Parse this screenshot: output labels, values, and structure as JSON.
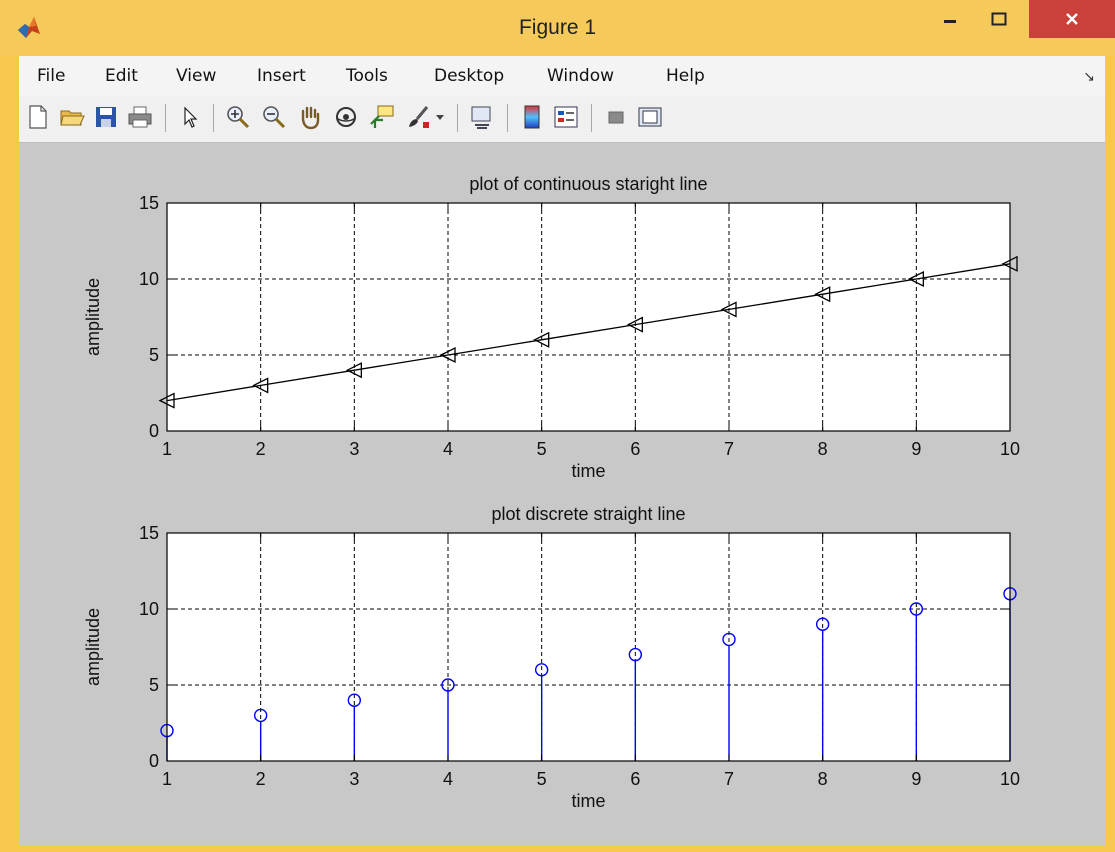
{
  "window": {
    "title": "Figure 1",
    "minimize_icon": "minimize-icon",
    "maximize_icon": "maximize-icon",
    "close_icon": "close-icon"
  },
  "menu": {
    "items": [
      "File",
      "Edit",
      "View",
      "Insert",
      "Tools",
      "Desktop",
      "Window",
      "Help"
    ]
  },
  "toolbar": {
    "tools": [
      "new-figure-icon",
      "open-file-icon",
      "save-icon",
      "print-icon",
      "edit-plot-arrow-icon",
      "zoom-in-icon",
      "zoom-out-icon",
      "pan-hand-icon",
      "rotate-3d-icon",
      "data-cursor-icon",
      "brush-icon",
      "brush-dropdown-icon",
      "link-plot-icon",
      "colorbar-icon",
      "legend-icon",
      "hide-plot-tools-icon",
      "show-plot-tools-icon"
    ]
  },
  "colors": {
    "window_frame": "#f7c84d",
    "close_button": "#c9413a",
    "figure_background": "#c8c8c8",
    "line_series": "#000000",
    "stem_series": "#0000ff"
  },
  "chart_data": [
    {
      "type": "line",
      "title": "plot of continuous staright line",
      "xlabel": "time",
      "ylabel": "amplitude",
      "x": [
        1,
        2,
        3,
        4,
        5,
        6,
        7,
        8,
        9,
        10
      ],
      "y": [
        2,
        3,
        4,
        5,
        6,
        7,
        8,
        9,
        10,
        11
      ],
      "marker": "left-triangle",
      "xlim": [
        1,
        10
      ],
      "ylim": [
        0,
        15
      ],
      "xticks": [
        "1",
        "2",
        "3",
        "4",
        "5",
        "6",
        "7",
        "8",
        "9",
        "10"
      ],
      "yticks": [
        "0",
        "5",
        "10",
        "15"
      ],
      "grid": true
    },
    {
      "type": "stem",
      "title": "plot discrete straight line",
      "xlabel": "time",
      "ylabel": "amplitude",
      "x": [
        1,
        2,
        3,
        4,
        5,
        6,
        7,
        8,
        9,
        10
      ],
      "y": [
        2,
        3,
        4,
        5,
        6,
        7,
        8,
        9,
        10,
        11
      ],
      "marker": "circle",
      "xlim": [
        1,
        10
      ],
      "ylim": [
        0,
        15
      ],
      "xticks": [
        "1",
        "2",
        "3",
        "4",
        "5",
        "6",
        "7",
        "8",
        "9",
        "10"
      ],
      "yticks": [
        "0",
        "5",
        "10",
        "15"
      ],
      "grid": true
    }
  ]
}
